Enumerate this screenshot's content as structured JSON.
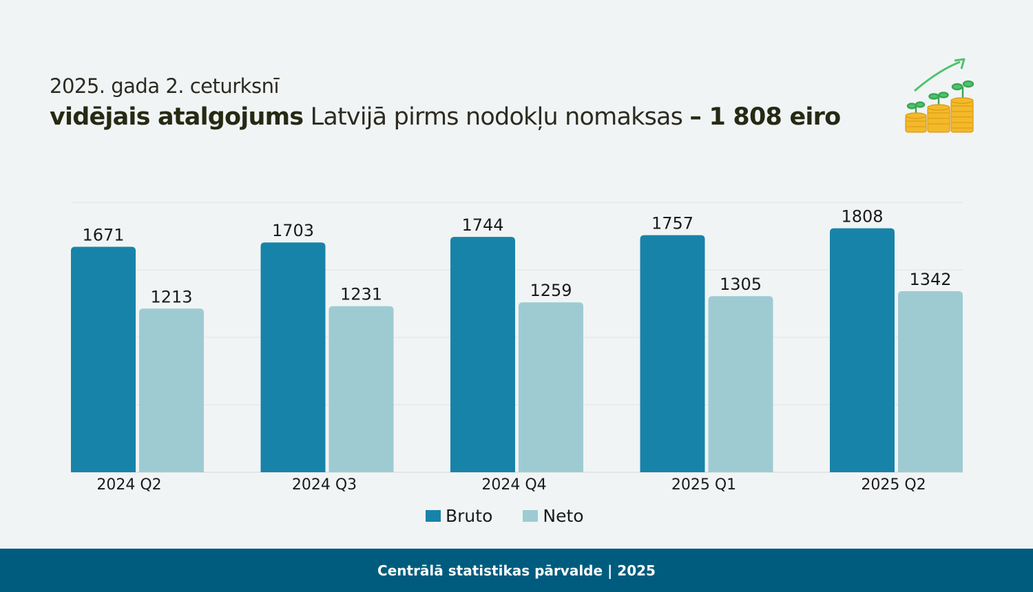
{
  "header": {
    "subtitle": "2025. gada 2. ceturksnī",
    "headline_bold": "vidējais atalgojums",
    "headline_normal": " Latvijā pirms nodokļu nomaksas ",
    "headline_value": "– 1 808 eiro"
  },
  "icon": "coins-growth-icon",
  "colors": {
    "bruto": "#1883a9",
    "neto": "#9ecbd2",
    "footer": "#005c7e",
    "background": "#f1f4f5"
  },
  "chart_data": {
    "type": "bar",
    "categories": [
      "2024 Q2",
      "2024 Q3",
      "2024 Q4",
      "2025 Q1",
      "2025 Q2"
    ],
    "series": [
      {
        "name": "Bruto",
        "values": [
          1671,
          1703,
          1744,
          1757,
          1808
        ]
      },
      {
        "name": "Neto",
        "values": [
          1213,
          1231,
          1259,
          1305,
          1342
        ]
      }
    ],
    "ylim": [
      0,
      2000
    ],
    "grid": true,
    "legend": "bottom-center"
  },
  "footer": {
    "text": "Centrālā statistikas pārvalde | 2025"
  }
}
